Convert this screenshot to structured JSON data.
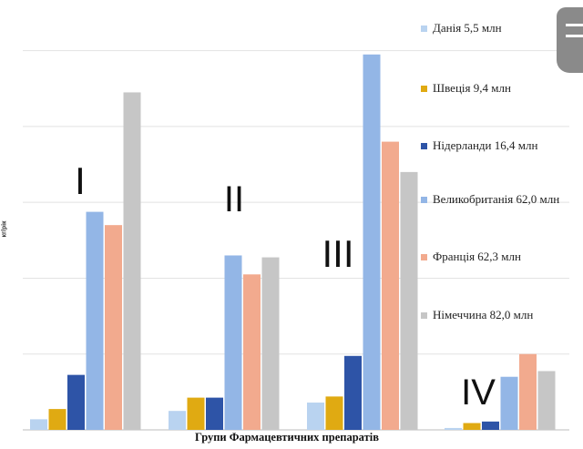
{
  "chart_data": {
    "type": "bar",
    "xlabel": "Групи Фармацевтичних препаратів",
    "ylabel": "кг/рік",
    "categories": [
      "І",
      "ІІ",
      "ІІІ",
      "ІV"
    ],
    "series": [
      {
        "name": "Данія 5,5 млн",
        "color": "#b9d3f0",
        "values": [
          0.28,
          0.5,
          0.72,
          0.05
        ]
      },
      {
        "name": "Швеція 9,4 млн",
        "color": "#e0aa12",
        "values": [
          0.55,
          0.85,
          0.88,
          0.18
        ]
      },
      {
        "name": "Нідерланди 16,4 млн",
        "color": "#2e54a7",
        "values": [
          1.45,
          0.85,
          1.95,
          0.22
        ]
      },
      {
        "name": "Великобританія 62,0 млн",
        "color": "#93b6e6",
        "values": [
          5.75,
          4.6,
          9.9,
          1.4
        ]
      },
      {
        "name": "Франція 62,3 млн",
        "color": "#f2aa8e",
        "values": [
          5.4,
          4.1,
          7.6,
          2.0
        ]
      },
      {
        "name": "Німеччина 82,0 млн",
        "color": "#c6c6c6",
        "values": [
          8.9,
          4.55,
          6.8,
          1.55
        ]
      }
    ],
    "ylim": [
      0,
      11
    ],
    "grid": true,
    "legend_position": "right"
  }
}
